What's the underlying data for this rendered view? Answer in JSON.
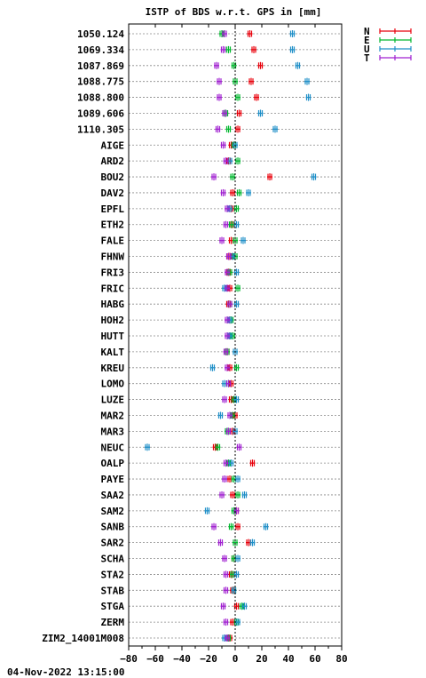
{
  "chart_data": {
    "type": "scatter",
    "title": "ISTP of BDS w.r.t. GPS in [mm]",
    "xlim": [
      -80,
      80
    ],
    "xticks": [
      -80,
      -60,
      -40,
      -20,
      0,
      20,
      40,
      60,
      80
    ],
    "grid": true,
    "legend_position": "top-right",
    "timestamp": "04-Nov-2022 13:15:00",
    "categories": [
      "1050.124",
      "1069.334",
      "1087.869",
      "1088.775",
      "1088.800",
      "1089.606",
      "1110.305",
      "AIGE",
      "ARD2",
      "BOU2",
      "DAV2",
      "EPFL",
      "ETH2",
      "FALE",
      "FHNW",
      "FRI3",
      "FRIC",
      "HABG",
      "HOH2",
      "HUTT",
      "KALT",
      "KREU",
      "LOMO",
      "LUZE",
      "MAR2",
      "MAR3",
      "NEUC",
      "OALP",
      "PAYE",
      "SAA2",
      "SAM2",
      "SANB",
      "SAR2",
      "SCHA",
      "STA2",
      "STAB",
      "STGA",
      "ZERM",
      "ZIM2_14001M008"
    ],
    "series": [
      {
        "name": "N",
        "color": "#e8000b",
        "values": [
          11,
          14,
          19,
          12,
          16,
          3,
          2,
          -3,
          -5,
          26,
          -2,
          -3,
          -2,
          -3,
          -4,
          -5,
          -4,
          -5,
          -4,
          -4,
          -6,
          -4,
          -3,
          -3,
          0,
          -2,
          -15,
          13,
          -4,
          -2,
          1,
          2,
          10,
          -1,
          -3,
          -2,
          1,
          -2,
          -4
        ]
      },
      {
        "name": "E",
        "color": "#00b82e",
        "values": [
          -10,
          -5,
          -1,
          0,
          2,
          -7,
          -5,
          -1,
          2,
          -2,
          3,
          1,
          -3,
          0,
          0,
          -4,
          2,
          -4,
          -3,
          -2,
          -6,
          1,
          -5,
          -1,
          -2,
          -6,
          -13,
          -5,
          -1,
          2,
          -1,
          -3,
          0,
          -1,
          -2,
          -1,
          5,
          1,
          -5
        ]
      },
      {
        "name": "U",
        "color": "#1f8fc8",
        "values": [
          43,
          43,
          47,
          54,
          55,
          19,
          30,
          0,
          -4,
          59,
          10,
          -4,
          1,
          6,
          -2,
          1,
          -8,
          1,
          -4,
          -4,
          0,
          -17,
          -8,
          1,
          -11,
          0,
          -66,
          -3,
          2,
          7,
          -21,
          23,
          13,
          2,
          1,
          -1,
          7,
          2,
          -8
        ]
      },
      {
        "name": "T",
        "color": "#a020d0",
        "values": [
          -8,
          -9,
          -14,
          -12,
          -12,
          -8,
          -13,
          -9,
          -7,
          -16,
          -9,
          -6,
          -7,
          -10,
          -5,
          -6,
          -6,
          -4,
          -6,
          -6,
          -7,
          -6,
          -5,
          -8,
          -4,
          -5,
          3,
          -7,
          -8,
          -10,
          1,
          -16,
          -11,
          -8,
          -7,
          -7,
          -9,
          -7,
          -6
        ]
      }
    ]
  }
}
